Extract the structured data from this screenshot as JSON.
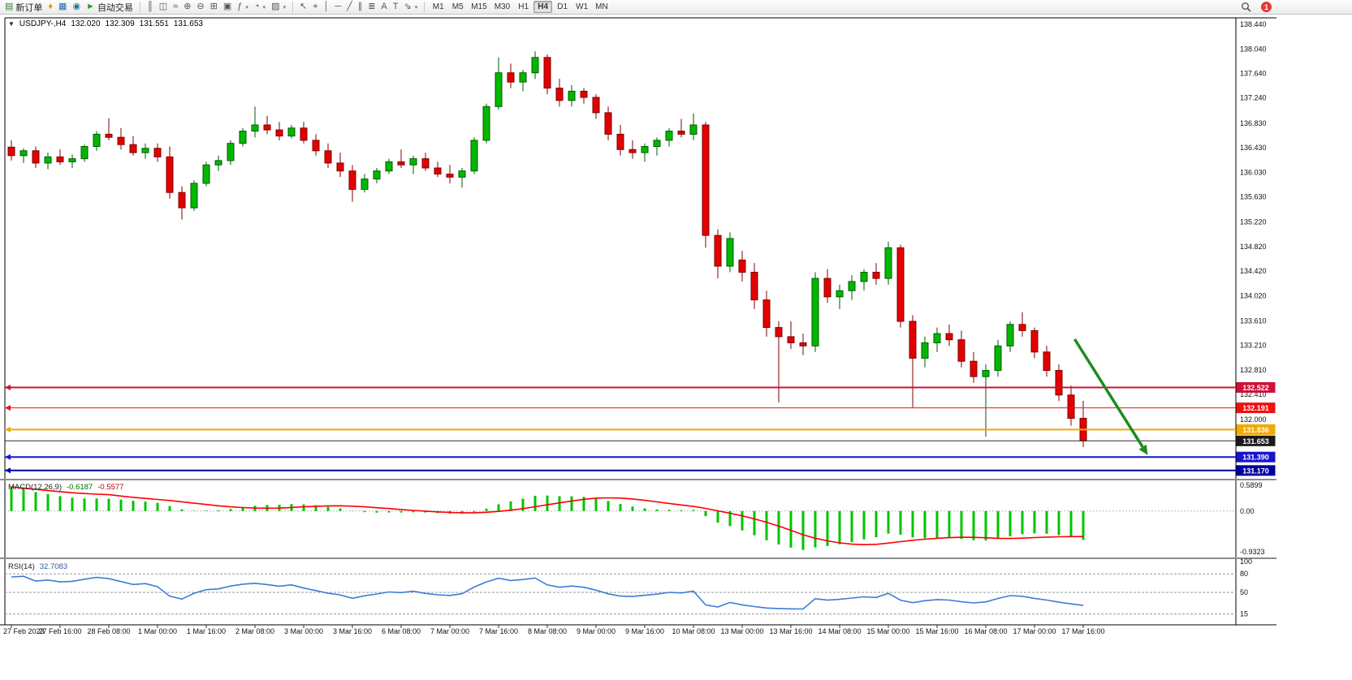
{
  "toolbar": {
    "groups": [
      {
        "name": "trade",
        "items": [
          {
            "name": "new-order-button",
            "glyph": "▤",
            "glyph_color": "#3a7d33",
            "label": "新订单"
          },
          {
            "name": "sound-alerts-icon",
            "glyph": "♦",
            "glyph_color": "#d89c00"
          },
          {
            "name": "new-chart-icon",
            "glyph": "▦",
            "glyph_color": "#2a66b0"
          },
          {
            "name": "data-window-icon",
            "glyph": "◉",
            "glyph_color": "#0e7c86"
          },
          {
            "name": "autotrading-button",
            "glyph": "►",
            "glyph_color": "#2e9e2e",
            "label": "自动交易"
          }
        ]
      },
      {
        "name": "chart-controls",
        "items": [
          {
            "name": "ohlc-bars-icon",
            "glyph": "║"
          },
          {
            "name": "candlestick-chart-icon",
            "glyph": "◫"
          },
          {
            "name": "line-chart-icon",
            "glyph": "≈"
          },
          {
            "name": "zoom-in-icon",
            "glyph": "⊕"
          },
          {
            "name": "zoom-out-icon",
            "glyph": "⊖"
          },
          {
            "name": "tile-windows-icon",
            "glyph": "⊞"
          },
          {
            "name": "auto-scroll-icon",
            "glyph": "▣"
          },
          {
            "name": "indicators-list-icon",
            "glyph": "ƒ",
            "dropdown": true
          },
          {
            "name": "periods-icon",
            "glyph": "◔",
            "dropdown": true
          },
          {
            "name": "templates-icon",
            "glyph": "▨",
            "dropdown": true
          }
        ]
      },
      {
        "name": "drawing-tools",
        "items": [
          {
            "name": "cursor-icon",
            "glyph": "↖"
          },
          {
            "name": "crosshair-icon",
            "glyph": "⌖"
          },
          {
            "name": "vertical-line-icon",
            "glyph": "│"
          },
          {
            "name": "horizontal-line-icon",
            "glyph": "─"
          },
          {
            "name": "trendline-icon",
            "glyph": "╱"
          },
          {
            "name": "equidistant-channel-icon",
            "glyph": "∥"
          },
          {
            "name": "fibonacci-icon",
            "glyph": "≣"
          },
          {
            "name": "text-icon",
            "glyph": "A"
          },
          {
            "name": "text-label-icon",
            "glyph": "T"
          },
          {
            "name": "arrows-tool-icon",
            "glyph": "⇘",
            "dropdown": true
          }
        ]
      }
    ],
    "timeframes": {
      "items": [
        "M1",
        "M5",
        "M15",
        "M30",
        "H1",
        "H4",
        "D1",
        "W1",
        "MN"
      ],
      "active": "H4"
    },
    "right_badge": "1"
  },
  "chart": {
    "caption": {
      "collapse_glyph": "▼",
      "symbol_period": "USDJPY-,H4",
      "open": "132.020",
      "high": "132.309",
      "low": "131.551",
      "close": "131.653"
    }
  },
  "chart_data": {
    "type": "candlestick",
    "symbol": "USDJPY-",
    "timeframe": "H4",
    "current_bar": {
      "open": 132.02,
      "high": 132.309,
      "low": 131.551,
      "close": 131.653
    },
    "price_axis_ticks": [
      "138.440",
      "138.040",
      "137.640",
      "137.240",
      "136.830",
      "136.430",
      "136.030",
      "135.630",
      "135.220",
      "134.820",
      "134.420",
      "134.020",
      "133.610",
      "133.210",
      "132.810",
      "132.410",
      "132.000"
    ],
    "time_axis_labels": [
      "27 Feb 2023",
      "27 Feb 16:00",
      "28 Feb 08:00",
      "1 Mar 00:00",
      "1 Mar 16:00",
      "2 Mar 08:00",
      "3 Mar 00:00",
      "3 Mar 16:00",
      "6 Mar 08:00",
      "7 Mar 00:00",
      "7 Mar 16:00",
      "8 Mar 08:00",
      "9 Mar 00:00",
      "9 Mar 16:00",
      "10 Mar 08:00",
      "13 Mar 00:00",
      "13 Mar 16:00",
      "14 Mar 08:00",
      "15 Mar 00:00",
      "15 Mar 16:00",
      "16 Mar 08:00",
      "17 Mar 00:00",
      "17 Mar 16:00"
    ],
    "candles_ohlc": [
      [
        136.44,
        136.55,
        136.22,
        136.3
      ],
      [
        136.3,
        136.42,
        136.18,
        136.38
      ],
      [
        136.38,
        136.45,
        136.1,
        136.18
      ],
      [
        136.18,
        136.35,
        136.08,
        136.28
      ],
      [
        136.28,
        136.4,
        136.15,
        136.2
      ],
      [
        136.2,
        136.32,
        136.1,
        136.25
      ],
      [
        136.25,
        136.48,
        136.2,
        136.45
      ],
      [
        136.45,
        136.7,
        136.38,
        136.65
      ],
      [
        136.65,
        136.91,
        136.55,
        136.6
      ],
      [
        136.6,
        136.75,
        136.4,
        136.48
      ],
      [
        136.48,
        136.62,
        136.3,
        136.35
      ],
      [
        136.35,
        136.5,
        136.25,
        136.42
      ],
      [
        136.42,
        136.5,
        136.2,
        136.28
      ],
      [
        136.28,
        136.45,
        135.6,
        135.7
      ],
      [
        135.7,
        135.8,
        135.26,
        135.45
      ],
      [
        135.45,
        135.9,
        135.4,
        135.85
      ],
      [
        135.85,
        136.2,
        135.8,
        136.15
      ],
      [
        136.15,
        136.3,
        136.05,
        136.22
      ],
      [
        136.22,
        136.55,
        136.15,
        136.5
      ],
      [
        136.5,
        136.75,
        136.45,
        136.7
      ],
      [
        136.7,
        137.1,
        136.6,
        136.8
      ],
      [
        136.8,
        136.95,
        136.65,
        136.72
      ],
      [
        136.72,
        136.85,
        136.55,
        136.62
      ],
      [
        136.62,
        136.8,
        136.58,
        136.75
      ],
      [
        136.75,
        136.85,
        136.5,
        136.55
      ],
      [
        136.55,
        136.65,
        136.3,
        136.38
      ],
      [
        136.38,
        136.5,
        136.1,
        136.18
      ],
      [
        136.18,
        136.35,
        135.95,
        136.05
      ],
      [
        136.05,
        136.15,
        135.55,
        135.75
      ],
      [
        135.75,
        136.0,
        135.7,
        135.92
      ],
      [
        135.92,
        136.1,
        135.85,
        136.05
      ],
      [
        136.05,
        136.25,
        136.0,
        136.2
      ],
      [
        136.2,
        136.4,
        136.1,
        136.15
      ],
      [
        136.15,
        136.3,
        136.0,
        136.25
      ],
      [
        136.25,
        136.35,
        136.05,
        136.1
      ],
      [
        136.1,
        136.2,
        135.95,
        136.0
      ],
      [
        136.0,
        136.15,
        135.85,
        135.95
      ],
      [
        135.95,
        136.1,
        135.78,
        136.05
      ],
      [
        136.05,
        136.6,
        136.0,
        136.55
      ],
      [
        136.55,
        137.15,
        136.5,
        137.1
      ],
      [
        137.1,
        137.9,
        137.05,
        137.65
      ],
      [
        137.65,
        137.8,
        137.4,
        137.5
      ],
      [
        137.5,
        137.7,
        137.35,
        137.65
      ],
      [
        137.65,
        138.0,
        137.55,
        137.9
      ],
      [
        137.9,
        137.95,
        137.3,
        137.4
      ],
      [
        137.4,
        137.55,
        137.1,
        137.2
      ],
      [
        137.2,
        137.45,
        137.1,
        137.35
      ],
      [
        137.35,
        137.4,
        137.15,
        137.25
      ],
      [
        137.25,
        137.3,
        136.9,
        137.0
      ],
      [
        137.0,
        137.1,
        136.55,
        136.65
      ],
      [
        136.65,
        136.8,
        136.3,
        136.4
      ],
      [
        136.4,
        136.55,
        136.25,
        136.35
      ],
      [
        136.35,
        136.5,
        136.2,
        136.45
      ],
      [
        136.45,
        136.6,
        136.3,
        136.55
      ],
      [
        136.55,
        136.75,
        136.45,
        136.7
      ],
      [
        136.7,
        136.9,
        136.6,
        136.65
      ],
      [
        136.65,
        136.99,
        136.55,
        136.8
      ],
      [
        136.8,
        136.85,
        134.8,
        135.0
      ],
      [
        135.0,
        135.1,
        134.3,
        134.5
      ],
      [
        134.5,
        135.05,
        134.4,
        134.95
      ],
      [
        134.6,
        134.75,
        134.25,
        134.4
      ],
      [
        134.4,
        134.55,
        133.8,
        133.95
      ],
      [
        133.95,
        134.1,
        133.35,
        133.5
      ],
      [
        133.5,
        133.6,
        132.28,
        133.35
      ],
      [
        133.35,
        133.6,
        133.15,
        133.25
      ],
      [
        133.25,
        133.4,
        133.05,
        133.2
      ],
      [
        133.2,
        134.4,
        133.1,
        134.3
      ],
      [
        134.3,
        134.45,
        133.9,
        134.0
      ],
      [
        134.0,
        134.2,
        133.8,
        134.1
      ],
      [
        134.1,
        134.35,
        133.95,
        134.25
      ],
      [
        134.25,
        134.45,
        134.1,
        134.4
      ],
      [
        134.4,
        134.55,
        134.2,
        134.3
      ],
      [
        134.3,
        134.9,
        134.2,
        134.8
      ],
      [
        134.8,
        134.85,
        133.5,
        133.6
      ],
      [
        133.6,
        133.7,
        132.2,
        133.0
      ],
      [
        133.0,
        133.35,
        132.85,
        133.25
      ],
      [
        133.25,
        133.5,
        133.1,
        133.4
      ],
      [
        133.4,
        133.55,
        133.2,
        133.3
      ],
      [
        133.3,
        133.45,
        132.85,
        132.95
      ],
      [
        132.95,
        133.1,
        132.6,
        132.7
      ],
      [
        132.7,
        132.9,
        131.72,
        132.8
      ],
      [
        132.8,
        133.3,
        132.7,
        133.2
      ],
      [
        133.2,
        133.6,
        133.1,
        133.55
      ],
      [
        133.55,
        133.75,
        133.35,
        133.45
      ],
      [
        133.45,
        133.5,
        133.0,
        133.1
      ],
      [
        133.1,
        133.2,
        132.7,
        132.8
      ],
      [
        132.8,
        132.9,
        132.3,
        132.4
      ],
      [
        132.4,
        132.55,
        131.9,
        132.02
      ],
      [
        132.02,
        132.309,
        131.551,
        131.653
      ]
    ],
    "horizontal_lines": [
      {
        "price": 132.522,
        "label": "132.522",
        "color": "#d01038",
        "width": 2
      },
      {
        "price": 132.191,
        "label": "132.191",
        "color": "#f01010",
        "width": 1
      },
      {
        "price": 131.836,
        "label": "131.836",
        "color": "#f2a900",
        "width": 2
      },
      {
        "price": 131.39,
        "label": "131.390",
        "color": "#1515cd",
        "width": 2
      },
      {
        "price": 131.17,
        "label": "131.170",
        "color": "#0000a0",
        "width": 2
      }
    ],
    "bid_line": {
      "price": 131.653,
      "label": "131.653",
      "color": "#2b2b2b",
      "width": 1
    },
    "trend_arrow": {
      "from": {
        "bar": 87.3,
        "price": 133.31
      },
      "to": {
        "bar": 93.3,
        "price": 131.42
      },
      "color": "#1e8c1e",
      "width": 3.5
    },
    "indicators": {
      "macd": {
        "label": "MACD(12,26,9)",
        "value_main": "-0.6187",
        "value_signal": "-0.5577",
        "axis_labels": [
          "0.5899",
          "0.00",
          "-0.9323"
        ],
        "histogram_color": "#00c400",
        "signal_color": "#ff0000"
      },
      "rsi": {
        "label": "RSI(14)",
        "value": "32.7083",
        "axis_labels": [
          "100",
          "80",
          "50",
          "15"
        ],
        "levels": [
          80,
          50,
          15
        ],
        "line_color": "#3e7bd6"
      }
    }
  },
  "colors": {
    "candle_up": "#00b800",
    "candle_up_border": "#005a00",
    "candle_down": "#e30000",
    "candle_down_border": "#7e0000",
    "background": "#ffffff",
    "axis_text": "#111111",
    "pane_separator": "#8c8c8c",
    "badge_text": "#ffffff",
    "bid_badge": "#1a1a1a",
    "notification": "#e53935"
  }
}
